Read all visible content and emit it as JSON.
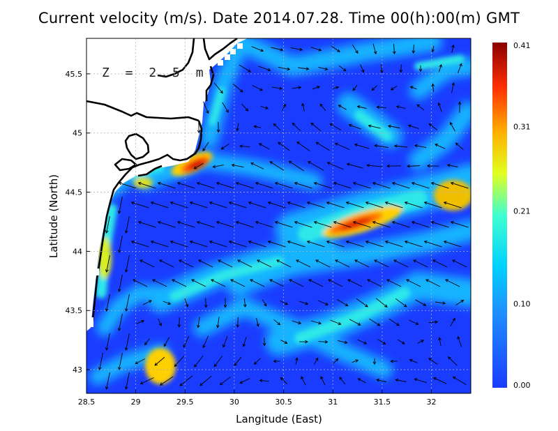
{
  "title": "Current velocity (m/s). Date 2014.07.28. Time 00(h):00(m) GMT",
  "depth_label": "Z = 2.5 m",
  "axes": {
    "xlabel": "Langitude (East)",
    "ylabel": "Latitude (North)",
    "xlim": [
      28.5,
      32.4
    ],
    "ylim": [
      42.8,
      45.8
    ],
    "xticks": [
      "28.5",
      "29",
      "29.5",
      "30",
      "30.5",
      "31",
      "31.5",
      "32"
    ],
    "xtick_values": [
      28.5,
      29,
      29.5,
      30,
      30.5,
      31,
      31.5,
      32
    ],
    "yticks": [
      "43",
      "43.5",
      "44",
      "44.5",
      "45",
      "45.5"
    ],
    "ytick_values": [
      43,
      43.5,
      44,
      44.5,
      45,
      45.5
    ],
    "grid": true
  },
  "colorbar": {
    "labels": [
      "0.41",
      "0.31",
      "0.21",
      "0.10",
      "0.00"
    ],
    "values": [
      0.41,
      0.31,
      0.21,
      0.1,
      0.0
    ],
    "min": 0.0,
    "max": 0.41,
    "colors": [
      "#1a3cff",
      "#00aaff",
      "#00e6e6",
      "#ffff00",
      "#ff8800",
      "#ff1a00",
      "#8b0000"
    ]
  },
  "colors": {
    "background_sea": "#1a3cff",
    "land": "#ffffff",
    "coast": "#000000",
    "grid": "#aaaaaa"
  },
  "chart_data": {
    "type": "heatmap",
    "title": "Current velocity (m/s). Date 2014.07.28. Time 00(h):00(m) GMT",
    "xlabel": "Langitude (East)",
    "ylabel": "Latitude (North)",
    "units": "m/s",
    "xlim": [
      28.5,
      32.4
    ],
    "ylim": [
      42.8,
      45.8
    ],
    "value_range": [
      0.0,
      0.41
    ],
    "fast_current_cores": [
      {
        "lon": 29.6,
        "lat": 44.75,
        "speed": 0.38
      },
      {
        "lon": 31.35,
        "lat": 44.25,
        "speed": 0.36
      },
      {
        "lon": 32.3,
        "lat": 44.45,
        "speed": 0.3
      },
      {
        "lon": 29.25,
        "lat": 43.0,
        "speed": 0.27
      },
      {
        "lon": 28.7,
        "lat": 43.85,
        "speed": 0.25
      }
    ]
  }
}
